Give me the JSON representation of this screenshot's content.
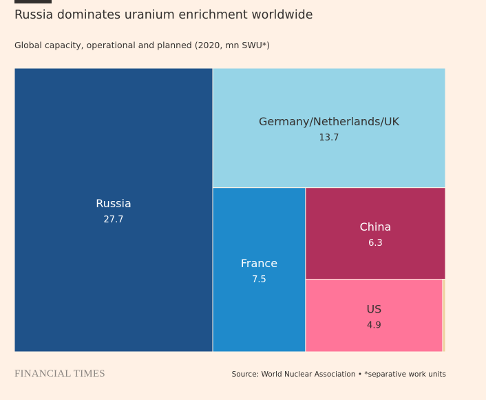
{
  "header": {
    "title": "Russia dominates uranium enrichment worldwide",
    "subtitle": "Global capacity, operational and planned (2020, mn SWU*)"
  },
  "footer": {
    "brand": "FINANCIAL TIMES",
    "source": "Source: World Nuclear Association • *separative work units"
  },
  "chart_data": {
    "type": "treemap",
    "title": "Russia dominates uranium enrichment worldwide",
    "subtitle": "Global capacity, operational and planned (2020, mn SWU*)",
    "units": "mn SWU",
    "items": [
      {
        "label": "Russia",
        "value": 27.7,
        "display": "27.7",
        "color": "#1f5289",
        "text_color": "#ffffff"
      },
      {
        "label": "Germany/Netherlands/UK",
        "value": 13.7,
        "display": "13.7",
        "color": "#96d4e7",
        "text_color": "#33302e"
      },
      {
        "label": "France",
        "value": 7.5,
        "display": "7.5",
        "color": "#1f8acb",
        "text_color": "#ffffff"
      },
      {
        "label": "China",
        "value": 6.3,
        "display": "6.3",
        "color": "#b0305c",
        "text_color": "#ffffff"
      },
      {
        "label": "US",
        "value": 4.9,
        "display": "4.9",
        "color": "#ff7599",
        "text_color": "#33302e"
      },
      {
        "label": "",
        "value": 0.1,
        "display": "",
        "color": "#eed29e",
        "text_color": "#33302e"
      }
    ]
  }
}
